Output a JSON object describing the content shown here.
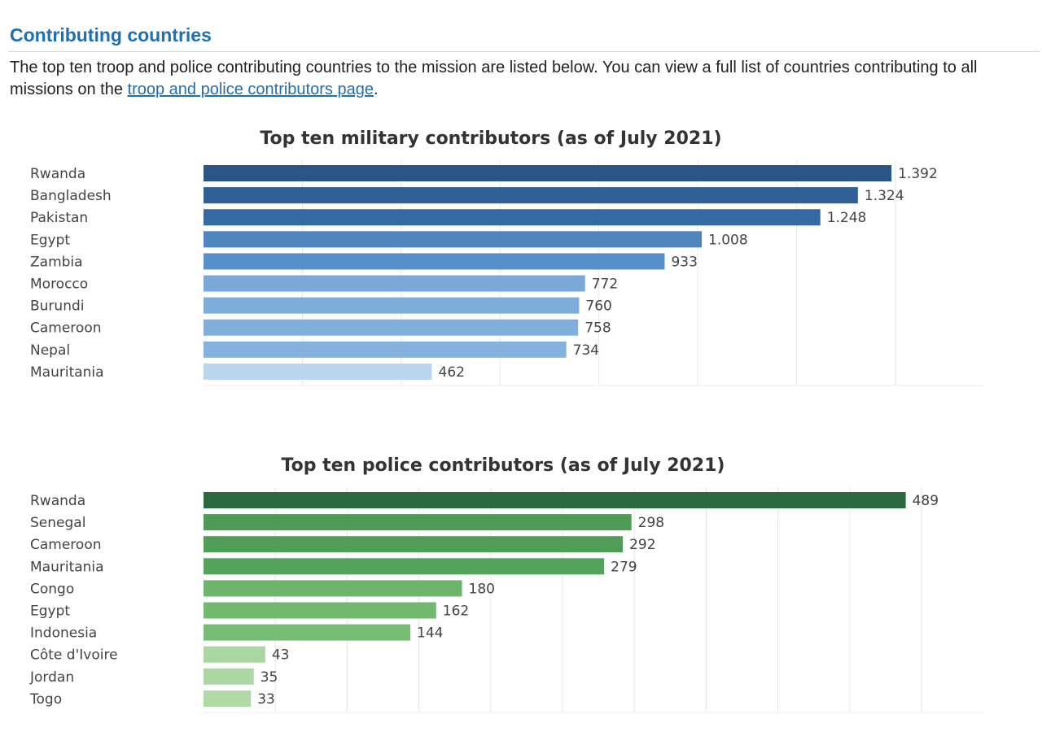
{
  "header": {
    "title": "Contributing countries",
    "intro_text": "The top ten troop and police contributing countries to the mission are listed below. You can view a full list of countries contributing to all missions on the ",
    "link_text": "troop and police contributors page",
    "intro_end": "."
  },
  "chart_data": [
    {
      "type": "bar",
      "orientation": "horizontal",
      "title": "Top ten military contributors (as of July 2021)",
      "categories": [
        "Rwanda",
        "Bangladesh",
        "Pakistan",
        "Egypt",
        "Zambia",
        "Morocco",
        "Burundi",
        "Cameroon",
        "Nepal",
        "Mauritania"
      ],
      "values": [
        1392,
        1324,
        1248,
        1008,
        933,
        772,
        760,
        758,
        734,
        462
      ],
      "value_labels": [
        "1.392",
        "1.324",
        "1.248",
        "1.008",
        "933",
        "772",
        "760",
        "758",
        "734",
        "462"
      ],
      "xlim": [
        0,
        1400
      ],
      "grid": "vertical",
      "colors": [
        "#2a5585",
        "#2f6096",
        "#336aa3",
        "#4f86c0",
        "#5790c8",
        "#7aa9d8",
        "#7eaddb",
        "#80afdc",
        "#84b2de",
        "#bad5ee"
      ]
    },
    {
      "type": "bar",
      "orientation": "horizontal",
      "title": "Top ten police contributors (as of July 2021)",
      "categories": [
        "Rwanda",
        "Senegal",
        "Cameroon",
        "Mauritania",
        "Congo",
        "Egypt",
        "Indonesia",
        "Côte d'Ivoire",
        "Jordan",
        "Togo"
      ],
      "values": [
        489,
        298,
        292,
        279,
        180,
        162,
        144,
        43,
        35,
        33
      ],
      "value_labels": [
        "489",
        "298",
        "292",
        "279",
        "180",
        "162",
        "144",
        "43",
        "35",
        "33"
      ],
      "xlim": [
        0,
        500
      ],
      "grid": "vertical",
      "colors": [
        "#2b6a3c",
        "#4d9b55",
        "#4f9d57",
        "#54a35c",
        "#6cb56b",
        "#72b96f",
        "#76bc72",
        "#aad6a2",
        "#acd7a4",
        "#afd9a7"
      ]
    }
  ]
}
